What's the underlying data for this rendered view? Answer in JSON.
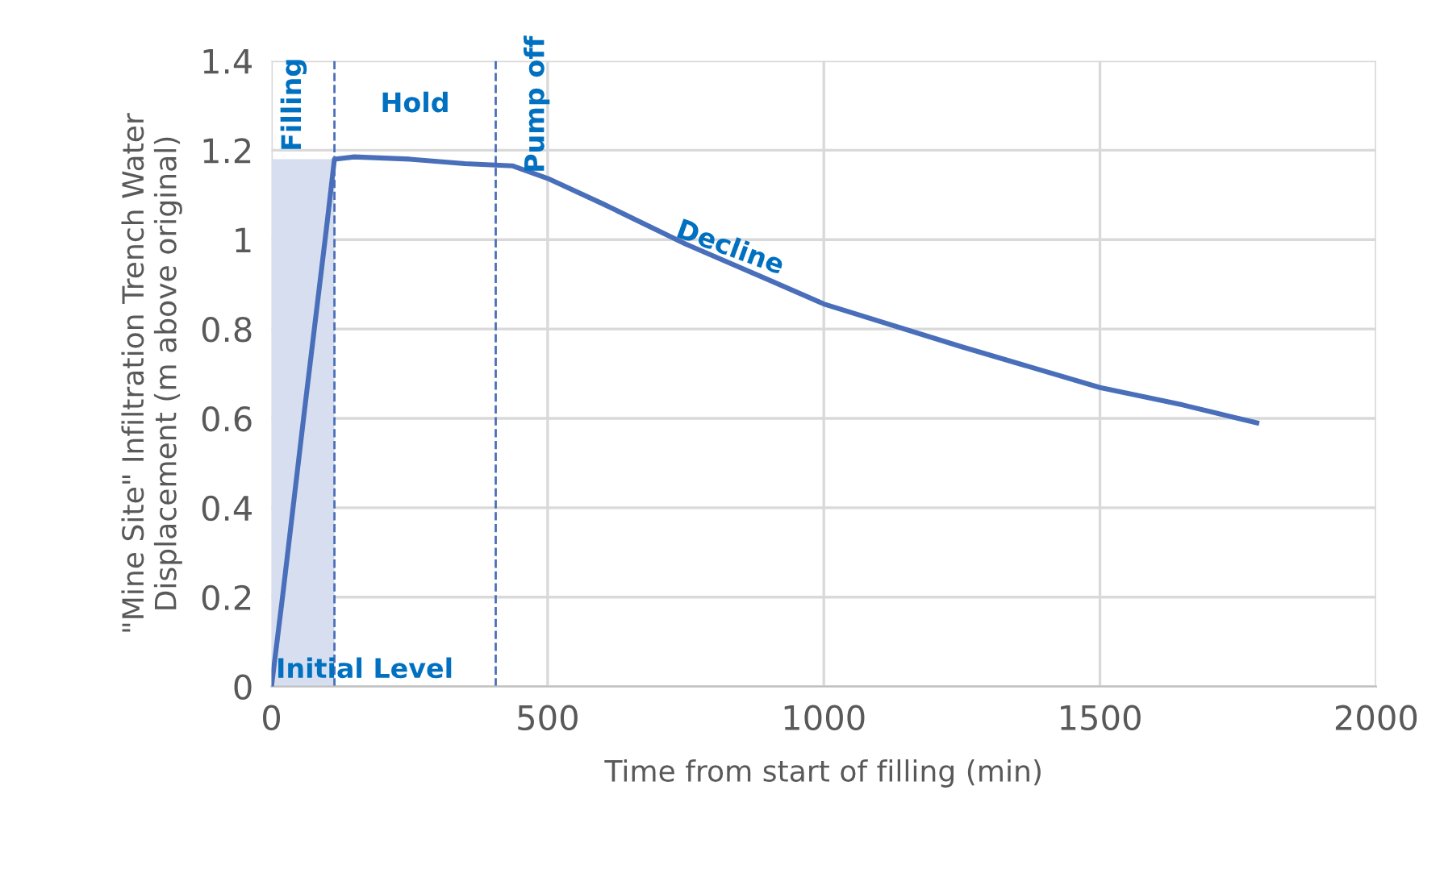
{
  "chart_data": {
    "type": "line",
    "xlabel": "Time from start of filling (min)",
    "ylabel": "\"Mine Site\" Infiltration Trench Water\nDisplacement (m above original)",
    "xlim": [
      0,
      2000
    ],
    "xticks": [
      0,
      500,
      1000,
      1500,
      2000
    ],
    "ylim": [
      0,
      1.4
    ],
    "yticks": [
      0,
      0.2,
      0.4,
      0.6,
      0.8,
      1,
      1.2,
      1.4
    ],
    "grid": true,
    "marker": "none",
    "line_style": "solid",
    "series": [
      {
        "type": "area",
        "color": "#d6deef",
        "x": [
          0,
          114
        ],
        "values": [
          1.18,
          1.18
        ]
      },
      {
        "color": "#4a6fba",
        "x": [
          0,
          20,
          60,
          100,
          114,
          150,
          250,
          350,
          436,
          500,
          600,
          750,
          900,
          1000,
          1250,
          1500,
          1650,
          1784
        ],
        "values": [
          0,
          0.2,
          0.62,
          1.03,
          1.18,
          1.185,
          1.18,
          1.17,
          1.165,
          1.137,
          1.08,
          0.99,
          0.91,
          0.856,
          0.76,
          0.669,
          0.63,
          0.59
        ]
      }
    ],
    "ref_lines": [
      {
        "axis": "x",
        "value": 114,
        "color": "#4a6fba",
        "line_style": "dashed"
      },
      {
        "axis": "x",
        "value": 406,
        "color": "#4a6fba",
        "line_style": "dashed"
      }
    ],
    "annotations": [
      "Filling",
      "Hold",
      "Pump off",
      "Decline",
      "Initial Level"
    ]
  }
}
